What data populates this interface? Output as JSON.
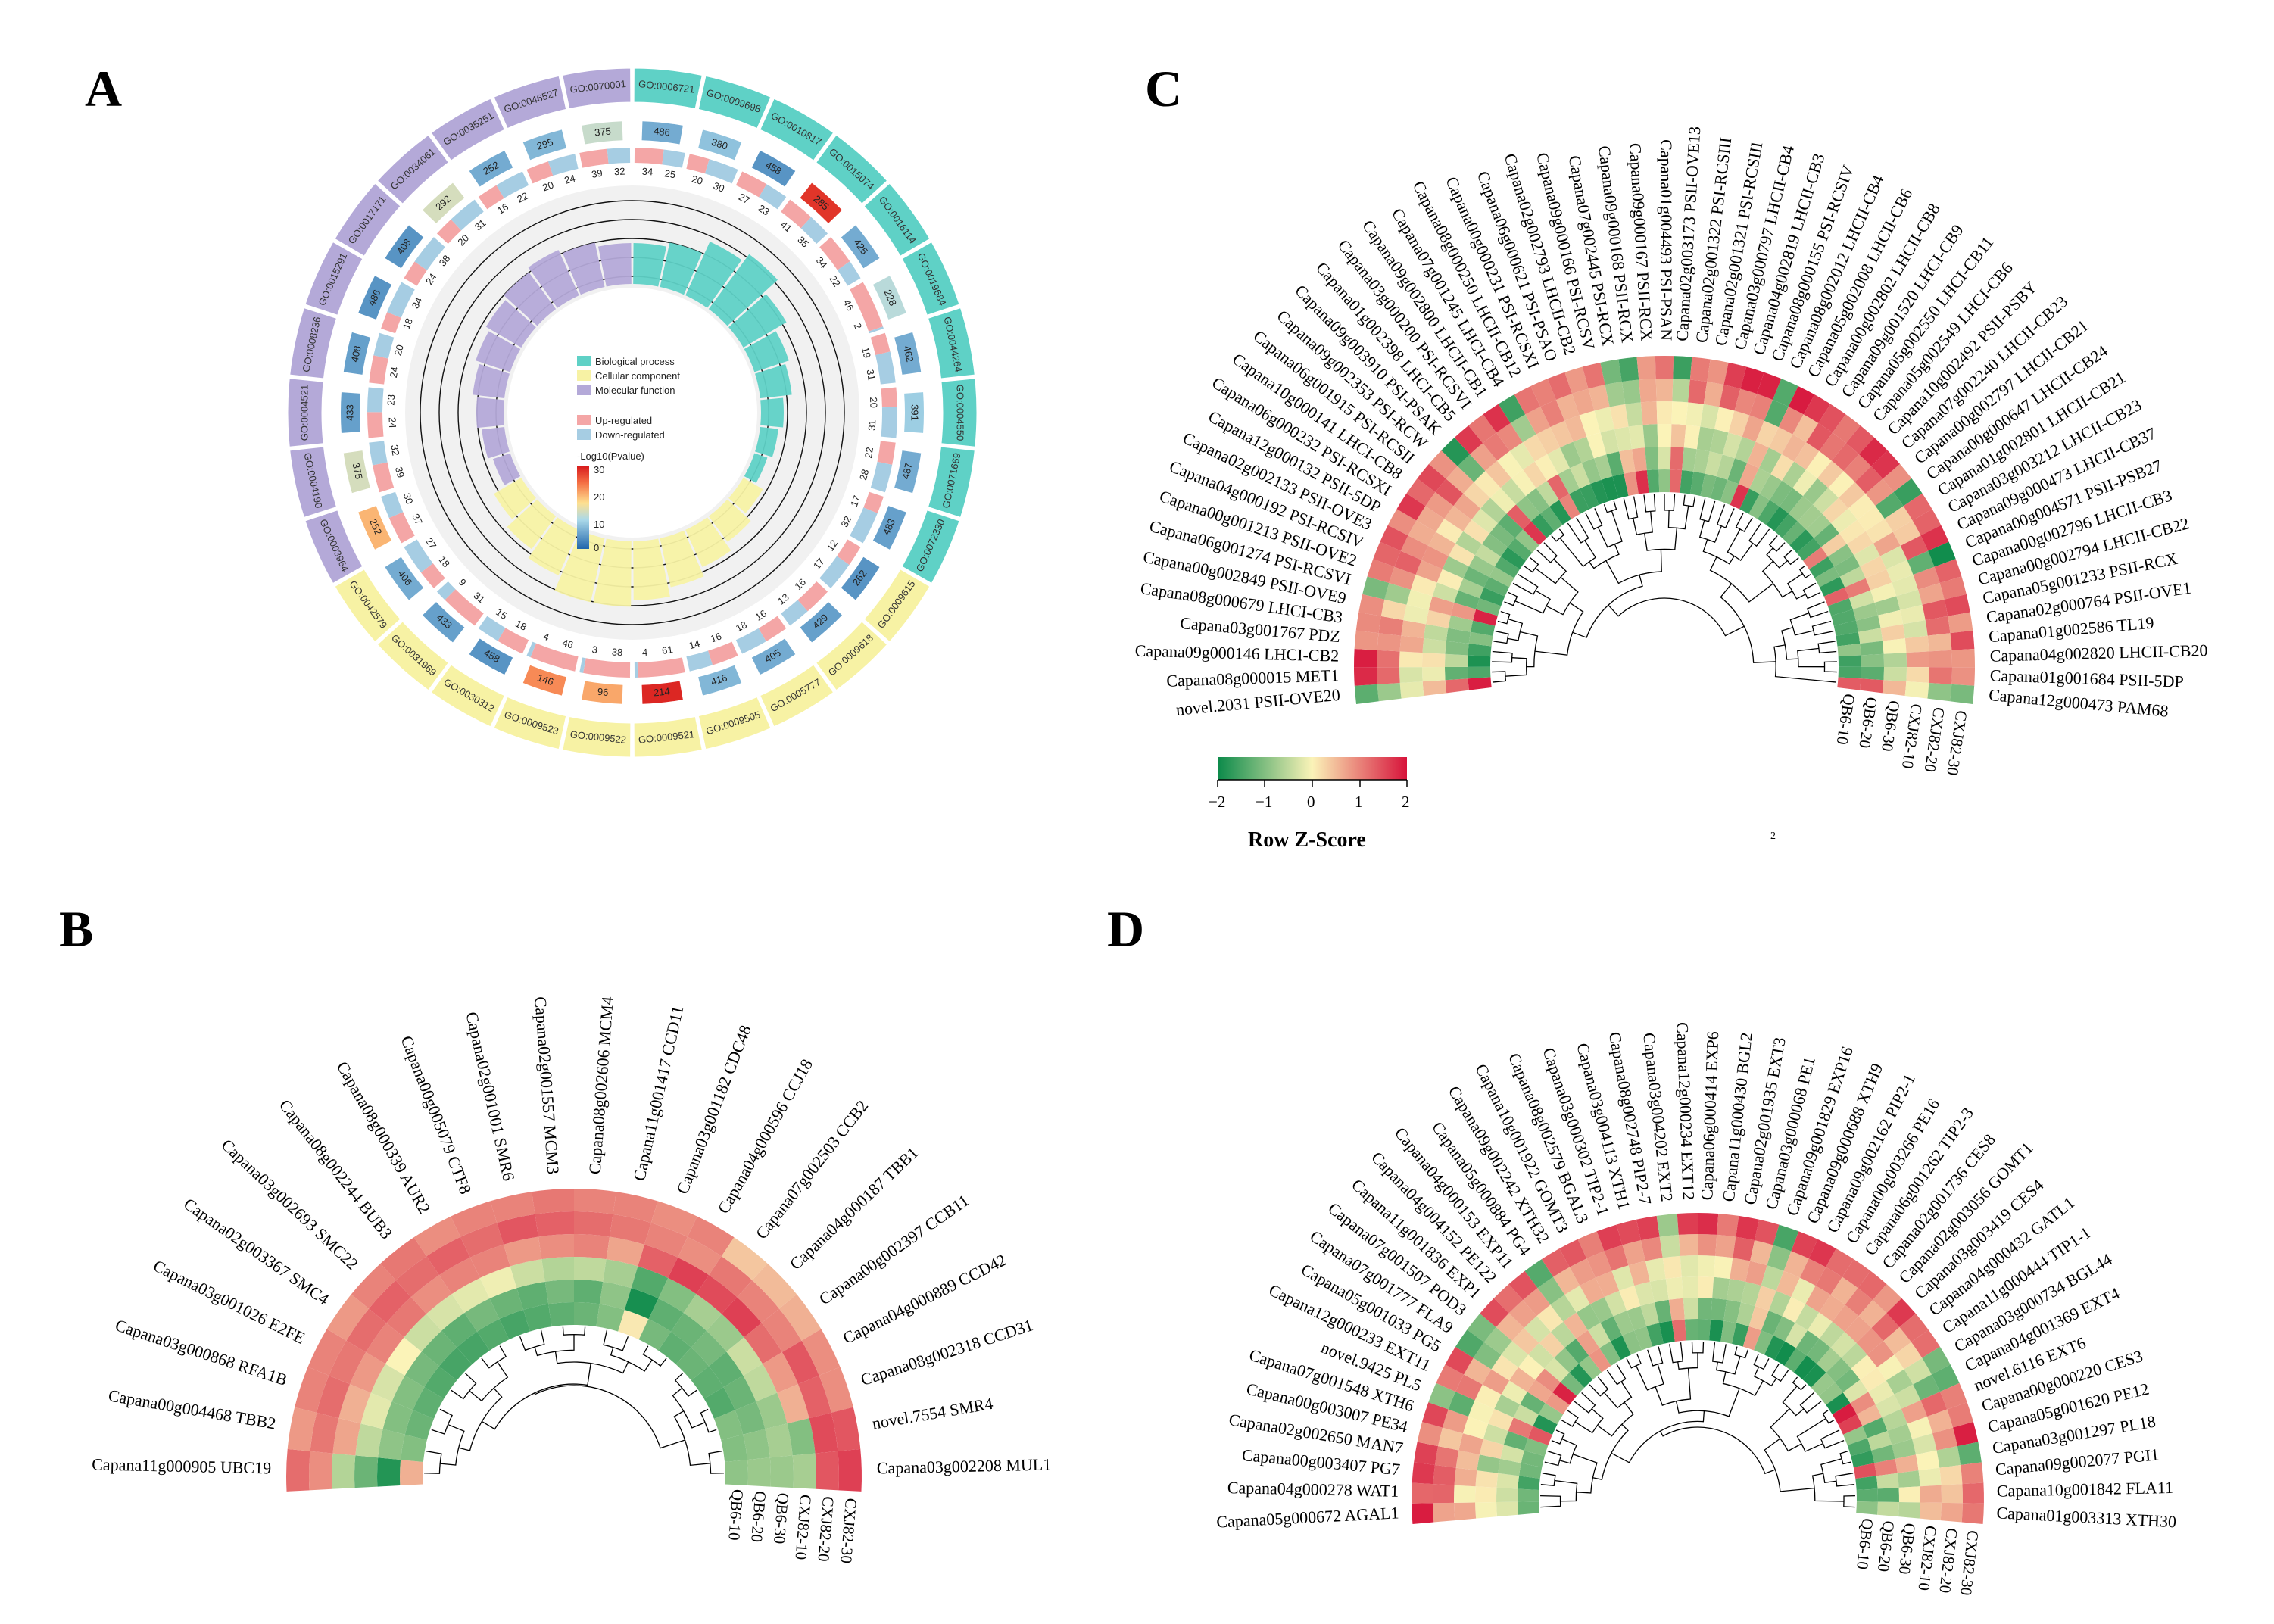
{
  "colors": {
    "bp": "#5fd1c6",
    "cc": "#f7f2a4",
    "mf": "#b4a9d8",
    "up": "#f4a6a6",
    "down": "#a6cde3",
    "low": "#0b8a4a",
    "mid": "#fbf3b8",
    "high": "#d7133b"
  },
  "chart_data": [
    {
      "panel": "A",
      "type": "circular",
      "legend": {
        "categories": [
          "Biological process",
          "Cellular component",
          "Molecular function"
        ],
        "regulation": [
          "Up-regulated",
          "Down-regulated"
        ],
        "pvalue_title": "-Log10(Pvalue)",
        "pvalue_ticks": [
          "30",
          "20",
          "10",
          "0"
        ]
      },
      "terms": [
        {
          "go": "GO:0006721",
          "cat": "bp",
          "count": 486,
          "pv": 6,
          "up": 34,
          "down": 25,
          "rich": 0.45
        },
        {
          "go": "GO:0009698",
          "cat": "bp",
          "count": 380,
          "pv": 8,
          "up": 20,
          "down": 30,
          "rich": 0.5
        },
        {
          "go": "GO:0010817",
          "cat": "bp",
          "count": 458,
          "pv": 4,
          "up": 27,
          "down": 23,
          "rich": 0.65
        },
        {
          "go": "GO:0015074",
          "cat": "bp",
          "count": 285,
          "pv": 28,
          "up": 41,
          "down": 35,
          "rich": 0.75
        },
        {
          "go": "GO:0016114",
          "cat": "bp",
          "count": 425,
          "pv": 6,
          "up": 34,
          "down": 22,
          "rich": 0.55
        },
        {
          "go": "GO:0019684",
          "cat": "bp",
          "count": 228,
          "pv": 11,
          "up": 46,
          "down": 2,
          "rich": 0.4
        },
        {
          "go": "GO:0044264",
          "cat": "bp",
          "count": 462,
          "pv": 6,
          "up": 19,
          "down": 31,
          "rich": 0.35
        },
        {
          "go": "GO:0004550",
          "cat": "bp",
          "count": 391,
          "pv": 9,
          "up": 20,
          "down": 31,
          "rich": 0.25
        },
        {
          "go": "GO:0071669",
          "cat": "bp",
          "count": 487,
          "pv": 6,
          "up": 22,
          "down": 28,
          "rich": 0.2
        },
        {
          "go": "GO:0072330",
          "cat": "bp",
          "count": 483,
          "pv": 5,
          "up": 17,
          "down": 32,
          "rich": 0.15
        },
        {
          "go": "GO:0009615",
          "cat": "cc",
          "count": 262,
          "pv": 4,
          "up": 12,
          "down": 17,
          "rich": 0.25
        },
        {
          "go": "GO:0009618",
          "cat": "cc",
          "count": 429,
          "pv": 5,
          "up": 16,
          "down": 13,
          "rich": 0.35
        },
        {
          "go": "GO:0005777",
          "cat": "cc",
          "count": 405,
          "pv": 6,
          "up": 16,
          "down": 18,
          "rich": 0.45
        },
        {
          "go": "GO:0009505",
          "cat": "cc",
          "count": 416,
          "pv": 7,
          "up": 16,
          "down": 14,
          "rich": 0.55
        },
        {
          "go": "GO:0009521",
          "cat": "cc",
          "count": 214,
          "pv": 29,
          "up": 61,
          "down": 4,
          "rich": 0.65
        },
        {
          "go": "GO:0009522",
          "cat": "cc",
          "count": 96,
          "pv": 20,
          "up": 38,
          "down": 3,
          "rich": 0.72
        },
        {
          "go": "GO:0009523",
          "cat": "cc",
          "count": 146,
          "pv": 22,
          "up": 46,
          "down": 4,
          "rich": 0.72
        },
        {
          "go": "GO:0030312",
          "cat": "cc",
          "count": 458,
          "pv": 4,
          "up": 18,
          "down": 15,
          "rich": 0.55
        },
        {
          "go": "GO:0031969",
          "cat": "cc",
          "count": 433,
          "pv": 5,
          "up": 31,
          "down": 9,
          "rich": 0.45
        },
        {
          "go": "GO:0042579",
          "cat": "cc",
          "count": 406,
          "pv": 6,
          "up": 18,
          "down": 27,
          "rich": 0.35
        },
        {
          "go": "GO:0003964",
          "cat": "mf",
          "count": 252,
          "pv": 19,
          "up": 37,
          "down": 30,
          "rich": 0.2
        },
        {
          "go": "GO:0004190",
          "cat": "mf",
          "count": 375,
          "pv": 13,
          "up": 39,
          "down": 32,
          "rich": 0.25
        },
        {
          "go": "GO:0004521",
          "cat": "mf",
          "count": 433,
          "pv": 5,
          "up": 24,
          "down": 23,
          "rich": 0.3
        },
        {
          "go": "GO:0008236",
          "cat": "mf",
          "count": 408,
          "pv": 5,
          "up": 24,
          "down": 20,
          "rich": 0.35
        },
        {
          "go": "GO:0015291",
          "cat": "mf",
          "count": 486,
          "pv": 4,
          "up": 18,
          "down": 34,
          "rich": 0.4
        },
        {
          "go": "GO:0017171",
          "cat": "mf",
          "count": 408,
          "pv": 4,
          "up": 24,
          "down": 38,
          "rich": 0.45
        },
        {
          "go": "GO:0034061",
          "cat": "mf",
          "count": 292,
          "pv": 13,
          "up": 20,
          "down": 31,
          "rich": 0.5
        },
        {
          "go": "GO:0035251",
          "cat": "mf",
          "count": 252,
          "pv": 6,
          "up": 16,
          "down": 22,
          "rich": 0.55
        },
        {
          "go": "GO:0046527",
          "cat": "mf",
          "count": 295,
          "pv": 7,
          "up": 20,
          "down": 24,
          "rich": 0.5
        },
        {
          "go": "GO:0070001",
          "cat": "mf",
          "count": 375,
          "pv": 12,
          "up": 39,
          "down": 32,
          "rich": 0.45
        }
      ]
    },
    {
      "panel": "B",
      "type": "heatmap",
      "samples": [
        "QB6-10",
        "QB6-20",
        "QB6-30",
        "CXJ82-10",
        "CXJ82-20",
        "CXJ82-30"
      ],
      "genes": [
        "Capana11g000905 UBC19",
        "Capana00g004468 TBB2",
        "Capana03g000868 RFA1B",
        "Capana03g001026 E2FE",
        "Capana02g003367 SMC4",
        "Capana03g002693 SMC22",
        "Capana08g002244 BUB3",
        "Capana08g000339 AUR2",
        "Capana00g005079 CTF8",
        "Capana02g001001 SMR6",
        "Capana02g001557 MCM3",
        "Capana08g002606 MCM4",
        "Capana11g001417 CCD11",
        "Capana03g001182 CDC48",
        "Capana04g000596 CCJ18",
        "Capana07g002503 CCB2",
        "Capana04g000187 TBB1",
        "Capana00g002397 CCB11",
        "Capana04g000889 CCD42",
        "Capana08g002318 CCD31",
        "novel.7554 SMR4",
        "Capana03g002208 MUL1"
      ],
      "values": [
        [
          0.6,
          -1.8,
          -1.2,
          -0.6,
          0.9,
          1.2
        ],
        [
          -1.0,
          -0.9,
          -0.5,
          0.7,
          1.1,
          0.8
        ],
        [
          -1.2,
          -1.0,
          -0.2,
          0.6,
          1.2,
          1.0
        ],
        [
          -1.3,
          -1.0,
          -0.3,
          0.8,
          1.1,
          1.0
        ],
        [
          -1.4,
          -1.1,
          0.0,
          1.0,
          1.2,
          0.8
        ],
        [
          -1.5,
          -1.2,
          -0.4,
          1.1,
          1.3,
          1.0
        ],
        [
          -1.5,
          -1.3,
          -0.3,
          0.9,
          1.2,
          1.1
        ],
        [
          -1.4,
          -1.1,
          -0.2,
          1.0,
          1.3,
          0.9
        ],
        [
          -1.5,
          -1.2,
          -0.1,
          1.0,
          1.2,
          1.0
        ],
        [
          -1.4,
          -1.3,
          -0.4,
          0.8,
          1.4,
          1.0
        ],
        [
          -1.3,
          -1.1,
          -0.6,
          0.9,
          1.3,
          1.1
        ],
        [
          -1.2,
          -1.3,
          -0.5,
          1.0,
          1.2,
          1.0
        ],
        [
          -1.0,
          -0.9,
          -0.7,
          0.7,
          1.1,
          1.0
        ],
        [
          0.1,
          -1.9,
          -1.4,
          1.3,
          1.0,
          0.9
        ],
        [
          -1.1,
          -1.3,
          -1.0,
          1.6,
          0.9,
          1.0
        ],
        [
          -1.3,
          -1.2,
          -0.7,
          1.5,
          1.1,
          0.4
        ],
        [
          -1.2,
          -1.1,
          -0.8,
          1.6,
          1.0,
          0.5
        ],
        [
          -1.3,
          -1.3,
          -0.4,
          1.2,
          1.0,
          0.6
        ],
        [
          -1.4,
          -1.2,
          -0.5,
          0.8,
          1.4,
          0.9
        ],
        [
          -1.0,
          -1.1,
          -0.8,
          0.6,
          1.3,
          0.9
        ],
        [
          -1.0,
          -0.9,
          -0.7,
          -1.0,
          1.5,
          1.4
        ],
        [
          -0.9,
          -0.8,
          -0.8,
          -0.7,
          1.4,
          1.6
        ]
      ]
    },
    {
      "panel": "C",
      "type": "heatmap",
      "samples": [
        "QB6-10",
        "QB6-20",
        "QB6-30",
        "CXJ82-10",
        "CXJ82-20",
        "CXJ82-30"
      ],
      "genes": [
        "novel.2031 PSII-OVE20",
        "Capana08g000015 MET1",
        "Capana09g000146 LHCI-CB2",
        "Capana03g001767 PDZ",
        "Capana08g000679 LHCI-CB3",
        "Capana00g002849 PSII-OVE9",
        "Capana06g001274 PSI-RCSVI",
        "Capana00g001213 PSII-OVE2",
        "Capana04g000192 PSI-RCSIV",
        "Capana02g002133 PSII-OVE3",
        "Capana12g000132 PSII-5DP",
        "Capana06g000232 PSI-RCSXI",
        "Capana10g000141 LHCI-CB8",
        "Capana06g001915 PSI-RCSII",
        "Capana09g002353 PSI-RCW",
        "Capana09g003910 PSI-PSAK",
        "Capana01g002398 LHCI-CB5",
        "Capana03g000200 PSI-RCSVI",
        "Capana09g002800 LHCII-CB1",
        "Capana07g001245 LHCI-CB4",
        "Capana08g000250 LHCII-CB12",
        "Capana00g000231 PSI-RCSXI",
        "Capana06g000621 PSI-PSAO",
        "Capana02g002793 LHCII-CB2",
        "Capana09g000166 PSI-RCSV",
        "Capana07g002445 PSI-RCX",
        "Capana09g000168 PSII-RCX",
        "Capana09g000167 PSII-RCX",
        "Capana01g004493 PSI-PSAN",
        "Capana02g003173 PSII-OVE13",
        "Capana02g001322 PSI-RCSIII",
        "Capana02g001321 PSI-RCSIII",
        "Capana03g000797 LHCII-CB4",
        "Capana04g002819 LHCII-CB3",
        "Capana08g000155 PSI-RCSIV",
        "Capana08g002012 LHCII-CB4",
        "Capana05g002008 LHCII-CB6",
        "Capana00g002802 LHCII-CB8",
        "Capana09g001520 LHCI-CB9",
        "Capana05g002550 LHCI-CB11",
        "Capana05g002549 LHCI-CB6",
        "Capana10g002492 PSII-PSBY",
        "Capana07g002240 LHCII-CB23",
        "Capana00g002797 LHCII-CB21",
        "Capana00g000647 LHCII-CB24",
        "Capana01g002801 LHCII-CB21",
        "Capana03g003212 LHCII-CB23",
        "Capana09g000473 LHCII-CB37",
        "Capana00g004571 PSII-PSB27",
        "Capana00g002796 LHCII-CB3",
        "Capana00g002794 LHCII-CB22",
        "Capana05g001233 PSII-RCX",
        "Capana02g000764 PSII-OVE1",
        "Capana01g002586 TL19",
        "Capana04g002820 LHCII-CB20",
        "Capana01g001684 PSII-5DP",
        "Capana12g000473 PAM68"
      ],
      "legend": {
        "title": "Row Z-Score",
        "ticks": [
          "−2",
          "−1",
          "0",
          "1",
          "2"
        ]
      }
    },
    {
      "panel": "D",
      "type": "heatmap",
      "samples": [
        "QB6-10",
        "QB6-20",
        "QB6-30",
        "CXJ82-10",
        "CXJ82-20",
        "CXJ82-30"
      ],
      "genes": [
        "Capana05g000672 AGAL1",
        "Capana04g000278 WAT1",
        "Capana00g003407 PG7",
        "Capana02g002650 MAN7",
        "Capana00g003007 PE34",
        "Capana07g001548 XTH6",
        "novel.9425 PL5",
        "Capana12g000233 EXT11",
        "Capana05g001033 PG5",
        "Capana07g001777 FLA9",
        "Capana07g001507 POD3",
        "Capana11g001836 EXP1",
        "Capana04g004152 PE122",
        "Capana04g000153 EXP11",
        "Capana05g000884 PG4",
        "Capana09g002242 XTH32",
        "Capana10g001922 GOMT3",
        "Capana08g002579 BGAL3",
        "Capana03g000302 TIP2-1",
        "Capana03g004113 XTH1",
        "Capana08g002748 PIP2-7",
        "Capana03g004202 EXT2",
        "Capana12g000234 EXT12",
        "Capana06g000414 EXP6",
        "Capana11g000430 BGL2",
        "Capana02g001935 EXT3",
        "Capana03g000068 PE1",
        "Capana09g001829 EXP16",
        "Capana09g000688 XTH9",
        "Capana09g002162 PIP2-1",
        "Capana00g003266 PE16",
        "Capana06g001262 TIP2-3",
        "Capana02g001736 CES8",
        "Capana02g003056 GOMT1",
        "Capana03g003419 CES4",
        "Capana04g000432 GATL1",
        "Capana11g000444 TIP1-1",
        "Capana03g000734 BGL44",
        "Capana04g001369 EXT4",
        "novel.6116 EXT6",
        "Capana00g000220 CES3",
        "Capana05g001620 PE12",
        "Capana03g001297 PL18",
        "Capana09g002077 PGI1",
        "Capana10g001842 FLA11",
        "Capana01g003313 XTH30"
      ]
    }
  ],
  "panels": {
    "A": "A",
    "B": "B",
    "C": "C",
    "D": "D"
  },
  "footnote": "2"
}
